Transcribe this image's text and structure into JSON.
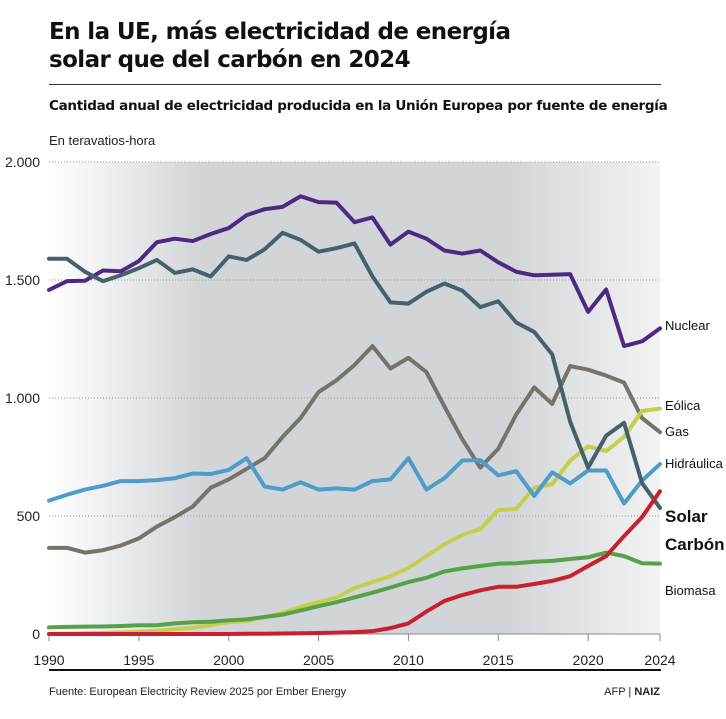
{
  "title": "En la UE, más electricidad de energía solar que del carbón en 2024",
  "subtitle": "Cantidad anual de electricidad producida en la Unión Europea por fuente de energía",
  "unit_label": "En teravatios-hora",
  "footer": {
    "source": "Fuente: European Electricity Review 2025 por Ember Energy",
    "credit_afp": "AFP |",
    "credit_naiz": "NAIZ"
  },
  "chart_data": {
    "type": "line",
    "title": "En la UE, más electricidad de energía solar que del carbón en 2024",
    "ylabel": "En teravatios-hora",
    "ylim": [
      0,
      2000
    ],
    "xlim": [
      1990,
      2024
    ],
    "x_ticks": [
      "1990",
      "1995",
      "2000",
      "2005",
      "2010",
      "2015",
      "2020",
      "2024"
    ],
    "y_ticks": [
      {
        "v": 0,
        "label": "0"
      },
      {
        "v": 500,
        "label": "500"
      },
      {
        "v": 1000,
        "label": "1.000"
      },
      {
        "v": 1500,
        "label": "1.500"
      },
      {
        "v": 2000,
        "label": "2.000"
      }
    ],
    "grid": true,
    "x": [
      1990,
      1991,
      1992,
      1993,
      1994,
      1995,
      1996,
      1997,
      1998,
      1999,
      2000,
      2001,
      2002,
      2003,
      2004,
      2005,
      2006,
      2007,
      2008,
      2009,
      2010,
      2011,
      2012,
      2013,
      2014,
      2015,
      2016,
      2017,
      2018,
      2019,
      2020,
      2021,
      2022,
      2023,
      2024
    ],
    "series": [
      {
        "name": "Nuclear",
        "color": "#4b2a86",
        "bold": false,
        "values": [
          1458,
          1495,
          1497,
          1540,
          1537,
          1580,
          1660,
          1675,
          1665,
          1695,
          1720,
          1775,
          1800,
          1810,
          1855,
          1830,
          1828,
          1745,
          1765,
          1650,
          1705,
          1675,
          1625,
          1612,
          1625,
          1575,
          1535,
          1520,
          1522,
          1525,
          1365,
          1460,
          1220,
          1240,
          1295
        ]
      },
      {
        "name": "Gas",
        "color": "#75736c",
        "bold": false,
        "values": [
          365,
          365,
          345,
          355,
          375,
          405,
          455,
          495,
          540,
          620,
          655,
          700,
          745,
          835,
          915,
          1025,
          1075,
          1140,
          1220,
          1125,
          1170,
          1110,
          965,
          825,
          705,
          785,
          930,
          1045,
          975,
          1135,
          1120,
          1095,
          1065,
          915,
          855
        ]
      },
      {
        "name": "Eólica",
        "color": "#c5cf4e",
        "bold": false,
        "values": [
          0,
          1,
          3,
          5,
          7,
          10,
          14,
          20,
          26,
          38,
          50,
          55,
          72,
          90,
          115,
          135,
          155,
          195,
          220,
          245,
          280,
          330,
          380,
          420,
          445,
          525,
          530,
          620,
          635,
          735,
          795,
          775,
          835,
          945,
          955
        ]
      },
      {
        "name": "Hidráulica",
        "color": "#4f9cc8",
        "bold": false,
        "values": [
          565,
          590,
          612,
          628,
          648,
          648,
          652,
          660,
          680,
          678,
          695,
          745,
          625,
          612,
          643,
          612,
          617,
          612,
          648,
          655,
          745,
          612,
          660,
          735,
          737,
          672,
          690,
          585,
          685,
          638,
          693,
          693,
          553,
          650,
          720
        ]
      },
      {
        "name": "Biomasa",
        "color": "#56a14a",
        "bold": false,
        "values": [
          28,
          30,
          31,
          32,
          34,
          37,
          37,
          45,
          50,
          52,
          58,
          62,
          72,
          82,
          100,
          118,
          135,
          155,
          175,
          197,
          220,
          238,
          265,
          278,
          288,
          298,
          300,
          306,
          310,
          318,
          325,
          345,
          330,
          300,
          298
        ]
      },
      {
        "name": "Carbón",
        "color": "#47606b",
        "bold": true,
        "values": [
          1590,
          1590,
          1535,
          1495,
          1520,
          1550,
          1585,
          1530,
          1545,
          1515,
          1600,
          1585,
          1630,
          1700,
          1670,
          1620,
          1635,
          1655,
          1515,
          1405,
          1400,
          1450,
          1485,
          1455,
          1385,
          1410,
          1320,
          1280,
          1185,
          900,
          705,
          840,
          895,
          640,
          534
        ]
      },
      {
        "name": "Solar",
        "color": "#c9202f",
        "bold": true,
        "values": [
          0,
          0,
          0,
          0,
          0,
          0,
          0,
          0,
          0,
          0,
          0,
          1,
          1,
          2,
          3,
          4,
          6,
          8,
          12,
          25,
          45,
          95,
          140,
          165,
          185,
          200,
          200,
          212,
          225,
          245,
          288,
          330,
          415,
          495,
          605
        ]
      }
    ]
  }
}
